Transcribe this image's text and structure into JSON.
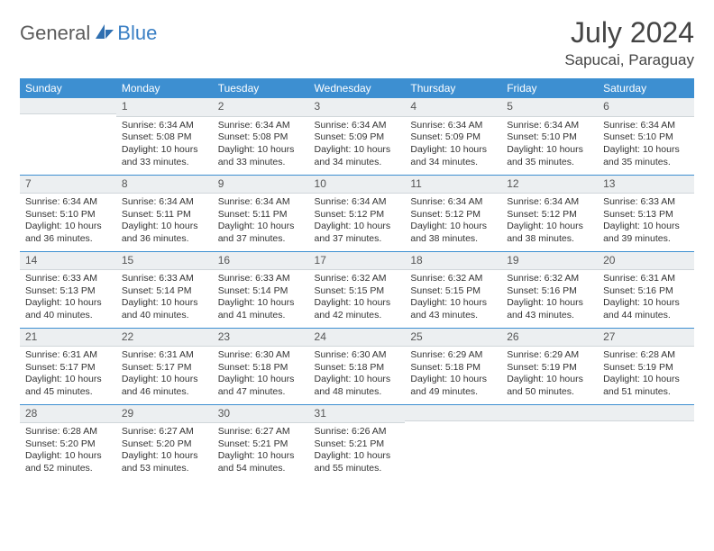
{
  "brand": {
    "part1": "General",
    "part2": "Blue"
  },
  "title": "July 2024",
  "location": "Sapucai, Paraguay",
  "colors": {
    "header_bg": "#3d8fd1",
    "header_text": "#ffffff",
    "daynum_bg": "#eceff1",
    "week_sep": "#3d8fd1",
    "text": "#333333",
    "logo_gray": "#5b5b5b",
    "logo_blue": "#3a7fc4"
  },
  "day_headers": [
    "Sunday",
    "Monday",
    "Tuesday",
    "Wednesday",
    "Thursday",
    "Friday",
    "Saturday"
  ],
  "weeks": [
    [
      {
        "n": "",
        "sr": "",
        "ss": "",
        "dl": ""
      },
      {
        "n": "1",
        "sr": "Sunrise: 6:34 AM",
        "ss": "Sunset: 5:08 PM",
        "dl": "Daylight: 10 hours and 33 minutes."
      },
      {
        "n": "2",
        "sr": "Sunrise: 6:34 AM",
        "ss": "Sunset: 5:08 PM",
        "dl": "Daylight: 10 hours and 33 minutes."
      },
      {
        "n": "3",
        "sr": "Sunrise: 6:34 AM",
        "ss": "Sunset: 5:09 PM",
        "dl": "Daylight: 10 hours and 34 minutes."
      },
      {
        "n": "4",
        "sr": "Sunrise: 6:34 AM",
        "ss": "Sunset: 5:09 PM",
        "dl": "Daylight: 10 hours and 34 minutes."
      },
      {
        "n": "5",
        "sr": "Sunrise: 6:34 AM",
        "ss": "Sunset: 5:10 PM",
        "dl": "Daylight: 10 hours and 35 minutes."
      },
      {
        "n": "6",
        "sr": "Sunrise: 6:34 AM",
        "ss": "Sunset: 5:10 PM",
        "dl": "Daylight: 10 hours and 35 minutes."
      }
    ],
    [
      {
        "n": "7",
        "sr": "Sunrise: 6:34 AM",
        "ss": "Sunset: 5:10 PM",
        "dl": "Daylight: 10 hours and 36 minutes."
      },
      {
        "n": "8",
        "sr": "Sunrise: 6:34 AM",
        "ss": "Sunset: 5:11 PM",
        "dl": "Daylight: 10 hours and 36 minutes."
      },
      {
        "n": "9",
        "sr": "Sunrise: 6:34 AM",
        "ss": "Sunset: 5:11 PM",
        "dl": "Daylight: 10 hours and 37 minutes."
      },
      {
        "n": "10",
        "sr": "Sunrise: 6:34 AM",
        "ss": "Sunset: 5:12 PM",
        "dl": "Daylight: 10 hours and 37 minutes."
      },
      {
        "n": "11",
        "sr": "Sunrise: 6:34 AM",
        "ss": "Sunset: 5:12 PM",
        "dl": "Daylight: 10 hours and 38 minutes."
      },
      {
        "n": "12",
        "sr": "Sunrise: 6:34 AM",
        "ss": "Sunset: 5:12 PM",
        "dl": "Daylight: 10 hours and 38 minutes."
      },
      {
        "n": "13",
        "sr": "Sunrise: 6:33 AM",
        "ss": "Sunset: 5:13 PM",
        "dl": "Daylight: 10 hours and 39 minutes."
      }
    ],
    [
      {
        "n": "14",
        "sr": "Sunrise: 6:33 AM",
        "ss": "Sunset: 5:13 PM",
        "dl": "Daylight: 10 hours and 40 minutes."
      },
      {
        "n": "15",
        "sr": "Sunrise: 6:33 AM",
        "ss": "Sunset: 5:14 PM",
        "dl": "Daylight: 10 hours and 40 minutes."
      },
      {
        "n": "16",
        "sr": "Sunrise: 6:33 AM",
        "ss": "Sunset: 5:14 PM",
        "dl": "Daylight: 10 hours and 41 minutes."
      },
      {
        "n": "17",
        "sr": "Sunrise: 6:32 AM",
        "ss": "Sunset: 5:15 PM",
        "dl": "Daylight: 10 hours and 42 minutes."
      },
      {
        "n": "18",
        "sr": "Sunrise: 6:32 AM",
        "ss": "Sunset: 5:15 PM",
        "dl": "Daylight: 10 hours and 43 minutes."
      },
      {
        "n": "19",
        "sr": "Sunrise: 6:32 AM",
        "ss": "Sunset: 5:16 PM",
        "dl": "Daylight: 10 hours and 43 minutes."
      },
      {
        "n": "20",
        "sr": "Sunrise: 6:31 AM",
        "ss": "Sunset: 5:16 PM",
        "dl": "Daylight: 10 hours and 44 minutes."
      }
    ],
    [
      {
        "n": "21",
        "sr": "Sunrise: 6:31 AM",
        "ss": "Sunset: 5:17 PM",
        "dl": "Daylight: 10 hours and 45 minutes."
      },
      {
        "n": "22",
        "sr": "Sunrise: 6:31 AM",
        "ss": "Sunset: 5:17 PM",
        "dl": "Daylight: 10 hours and 46 minutes."
      },
      {
        "n": "23",
        "sr": "Sunrise: 6:30 AM",
        "ss": "Sunset: 5:18 PM",
        "dl": "Daylight: 10 hours and 47 minutes."
      },
      {
        "n": "24",
        "sr": "Sunrise: 6:30 AM",
        "ss": "Sunset: 5:18 PM",
        "dl": "Daylight: 10 hours and 48 minutes."
      },
      {
        "n": "25",
        "sr": "Sunrise: 6:29 AM",
        "ss": "Sunset: 5:18 PM",
        "dl": "Daylight: 10 hours and 49 minutes."
      },
      {
        "n": "26",
        "sr": "Sunrise: 6:29 AM",
        "ss": "Sunset: 5:19 PM",
        "dl": "Daylight: 10 hours and 50 minutes."
      },
      {
        "n": "27",
        "sr": "Sunrise: 6:28 AM",
        "ss": "Sunset: 5:19 PM",
        "dl": "Daylight: 10 hours and 51 minutes."
      }
    ],
    [
      {
        "n": "28",
        "sr": "Sunrise: 6:28 AM",
        "ss": "Sunset: 5:20 PM",
        "dl": "Daylight: 10 hours and 52 minutes."
      },
      {
        "n": "29",
        "sr": "Sunrise: 6:27 AM",
        "ss": "Sunset: 5:20 PM",
        "dl": "Daylight: 10 hours and 53 minutes."
      },
      {
        "n": "30",
        "sr": "Sunrise: 6:27 AM",
        "ss": "Sunset: 5:21 PM",
        "dl": "Daylight: 10 hours and 54 minutes."
      },
      {
        "n": "31",
        "sr": "Sunrise: 6:26 AM",
        "ss": "Sunset: 5:21 PM",
        "dl": "Daylight: 10 hours and 55 minutes."
      },
      {
        "n": "",
        "sr": "",
        "ss": "",
        "dl": ""
      },
      {
        "n": "",
        "sr": "",
        "ss": "",
        "dl": ""
      },
      {
        "n": "",
        "sr": "",
        "ss": "",
        "dl": ""
      }
    ]
  ]
}
